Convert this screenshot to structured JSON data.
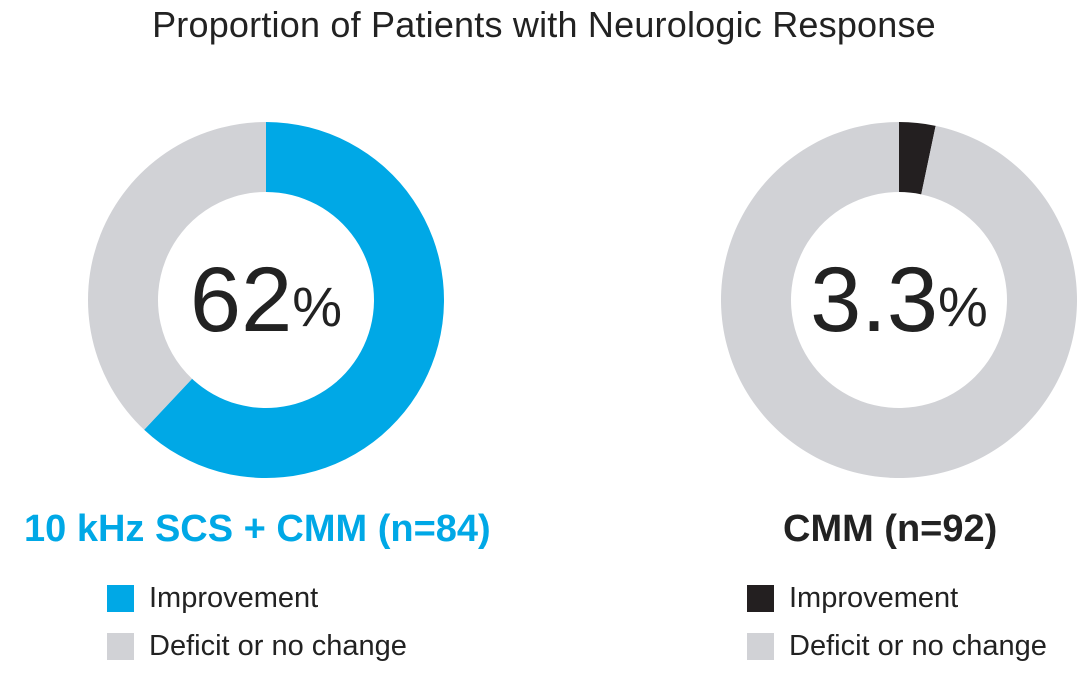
{
  "title": "Proportion of Patients with Neurologic Response",
  "chart_data": [
    {
      "type": "pie",
      "subtype": "donut",
      "group_label": "10 kHz SCS + CMM (n=84)",
      "center_value": "62",
      "center_unit": "%",
      "improvement_percent": 62,
      "slices": [
        {
          "label": "Improvement",
          "value": 62,
          "color": "#00a8e6"
        },
        {
          "label": "Deficit or no change",
          "value": 38,
          "color": "#d1d2d6"
        }
      ],
      "label_color": "#00a8e6"
    },
    {
      "type": "pie",
      "subtype": "donut",
      "group_label": "CMM (n=92)",
      "center_value": "3.3",
      "center_unit": "%",
      "improvement_percent": 3.3,
      "slices": [
        {
          "label": "Improvement",
          "value": 3.3,
          "color": "#231f20"
        },
        {
          "label": "Deficit or no change",
          "value": 96.7,
          "color": "#d1d2d6"
        }
      ],
      "label_color": "#222222"
    }
  ]
}
